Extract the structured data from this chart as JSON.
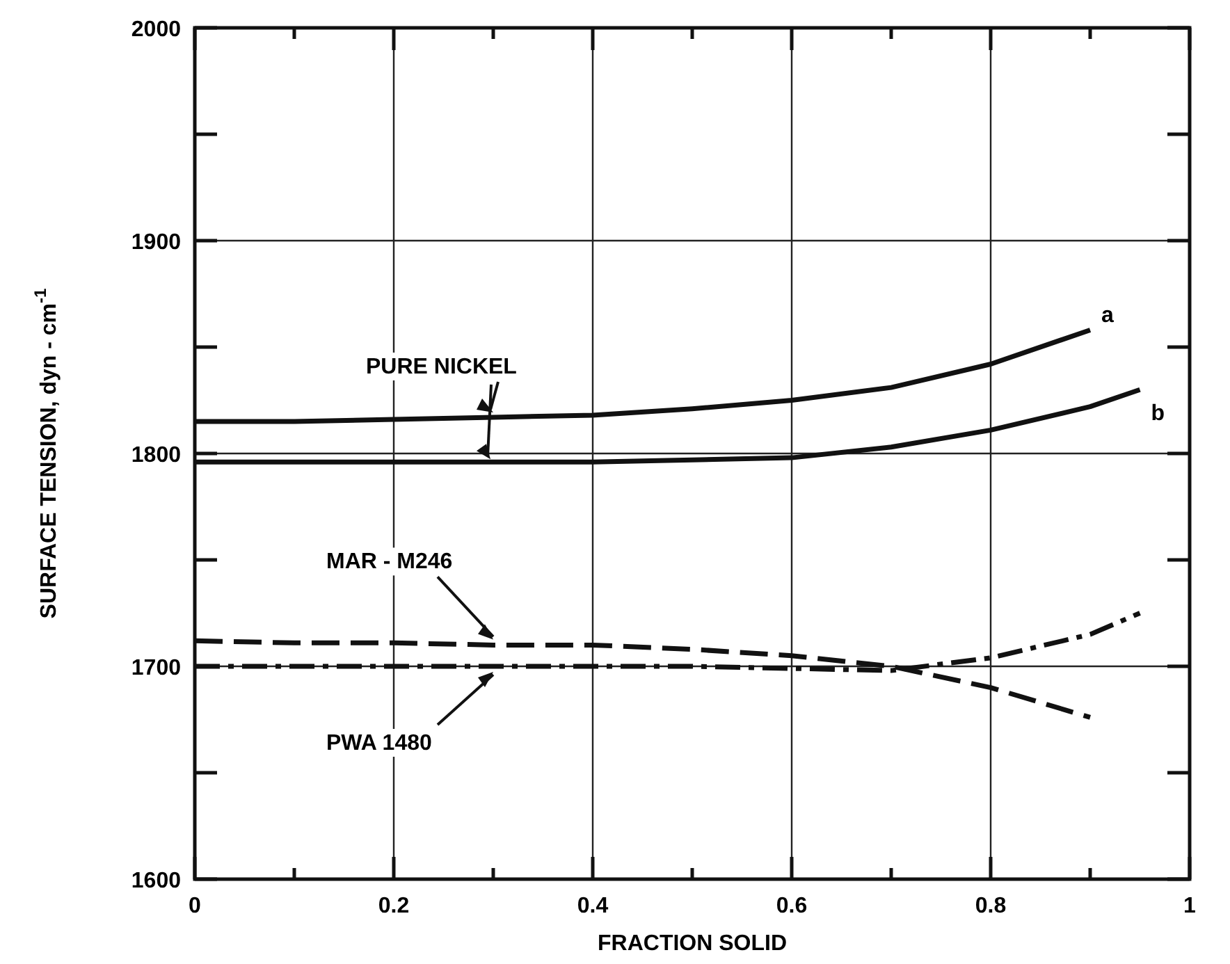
{
  "chart_data": {
    "type": "line",
    "xlabel": "FRACTION SOLID",
    "ylabel": "SURFACE TENSION, dyn - cm$^{-1}$",
    "x": [
      0,
      0.1,
      0.2,
      0.3,
      0.4,
      0.5,
      0.6,
      0.7,
      0.8,
      0.9
    ],
    "series": [
      {
        "name": "a",
        "color": "#111111",
        "line_style": "solid",
        "values": [
          1815,
          1815,
          1816,
          1817,
          1818,
          1821,
          1825,
          1831,
          1842,
          1858
        ]
      },
      {
        "name": "b",
        "color": "#111111",
        "line_style": "solid",
        "x": [
          0,
          0.1,
          0.2,
          0.3,
          0.4,
          0.5,
          0.6,
          0.7,
          0.8,
          0.9,
          0.95
        ],
        "values": [
          1796,
          1796,
          1796,
          1796,
          1796,
          1797,
          1798,
          1803,
          1811,
          1822,
          1830
        ]
      },
      {
        "name": "MAR - M246",
        "color": "#111111",
        "line_style": "dashed",
        "values": [
          1712,
          1711,
          1711,
          1710,
          1710,
          1708,
          1705,
          1700,
          1690,
          1676
        ]
      },
      {
        "name": "PWA 1480",
        "color": "#111111",
        "line_style": "dotted",
        "x": [
          0,
          0.1,
          0.2,
          0.3,
          0.4,
          0.5,
          0.6,
          0.7,
          0.8,
          0.9,
          0.95
        ],
        "values": [
          1700,
          1700,
          1700,
          1700,
          1700,
          1700,
          1699,
          1698,
          1704,
          1715,
          1725
        ]
      }
    ],
    "annotations": [
      {
        "text": "PURE NICKEL",
        "x": 0.3,
        "y": 1818
      }
    ],
    "xlim": [
      0,
      1.0
    ],
    "xticks": [
      0,
      {
        "value": 0.1,
        "label": null
      },
      0.2,
      {
        "value": 0.3,
        "label": null
      },
      0.4,
      {
        "value": 0.5,
        "label": null
      },
      0.6,
      {
        "value": 0.7,
        "label": null
      },
      0.8,
      {
        "value": 0.9,
        "label": null
      },
      1.0
    ],
    "ylim": [
      1600,
      2000
    ],
    "yticks": [
      1600,
      {
        "value": 1650,
        "label": null
      },
      1700,
      {
        "value": 1750,
        "label": null
      },
      1800,
      {
        "value": 1850,
        "label": null
      },
      1900,
      {
        "value": 1950,
        "label": null
      },
      2000
    ],
    "grid": true,
    "legend": false,
    "marker": "none"
  }
}
